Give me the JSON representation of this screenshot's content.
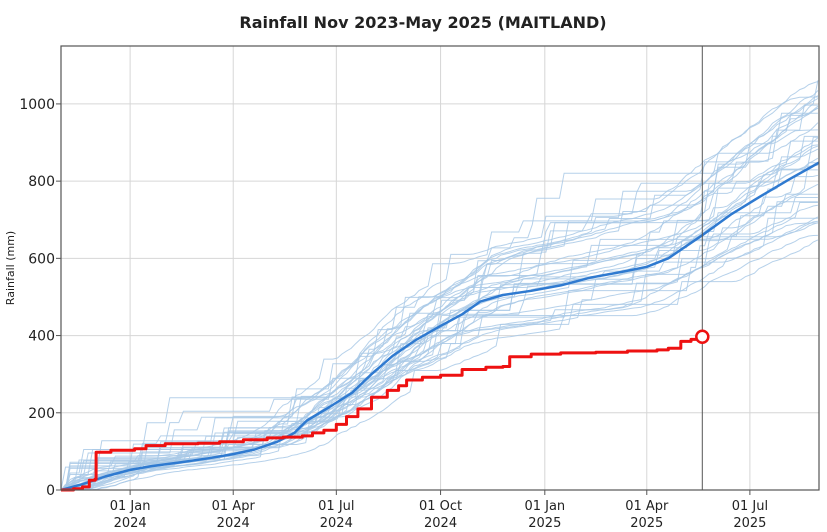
{
  "chart_data": {
    "type": "line",
    "title": "Rainfall Nov 2023-May 2025 (MAITLAND)",
    "ylabel": "Rainfall (mm)",
    "xlabel": "",
    "x_range": [
      "2023-11-01",
      "2025-08-31"
    ],
    "ylim": [
      0,
      1150
    ],
    "y_ticks": [
      0,
      200,
      400,
      600,
      800,
      1000
    ],
    "x_ticks": [
      {
        "date": "2024-01-01",
        "line1": "01 Jan",
        "line2": "2024"
      },
      {
        "date": "2024-04-01",
        "line1": "01 Apr",
        "line2": "2024"
      },
      {
        "date": "2024-07-01",
        "line1": "01 Jul",
        "line2": "2024"
      },
      {
        "date": "2024-10-01",
        "line1": "01 Oct",
        "line2": "2024"
      },
      {
        "date": "2025-01-01",
        "line1": "01 Jan",
        "line2": "2025"
      },
      {
        "date": "2025-04-01",
        "line1": "01 Apr",
        "line2": "2025"
      },
      {
        "date": "2025-07-01",
        "line1": "01 Jul",
        "line2": "2025"
      }
    ],
    "grid": true,
    "current_date": "2025-05-20",
    "colors": {
      "historical": "#a9c9e6",
      "median": "#2f7ad0",
      "current": "#ee1111",
      "grid": "#d6d6d6",
      "axis": "#555555",
      "marker_line": "#555555"
    },
    "series": [
      {
        "role": "median",
        "points": [
          [
            "2023-11-01",
            0
          ],
          [
            "2023-11-20",
            15
          ],
          [
            "2023-12-10",
            35
          ],
          [
            "2024-01-01",
            52
          ],
          [
            "2024-01-20",
            62
          ],
          [
            "2024-02-15",
            72
          ],
          [
            "2024-03-10",
            82
          ],
          [
            "2024-04-01",
            93
          ],
          [
            "2024-04-20",
            105
          ],
          [
            "2024-05-10",
            125
          ],
          [
            "2024-05-25",
            148
          ],
          [
            "2024-06-05",
            180
          ],
          [
            "2024-06-25",
            215
          ],
          [
            "2024-07-15",
            252
          ],
          [
            "2024-08-01",
            300
          ],
          [
            "2024-08-20",
            348
          ],
          [
            "2024-09-10",
            390
          ],
          [
            "2024-10-01",
            425
          ],
          [
            "2024-10-20",
            455
          ],
          [
            "2024-11-05",
            488
          ],
          [
            "2024-11-25",
            505
          ],
          [
            "2024-12-20",
            516
          ],
          [
            "2025-01-15",
            530
          ],
          [
            "2025-02-10",
            550
          ],
          [
            "2025-03-10",
            565
          ],
          [
            "2025-04-01",
            578
          ],
          [
            "2025-04-20",
            600
          ],
          [
            "2025-05-20",
            660
          ],
          [
            "2025-06-15",
            715
          ],
          [
            "2025-07-10",
            760
          ],
          [
            "2025-08-05",
            805
          ],
          [
            "2025-08-31",
            848
          ]
        ]
      },
      {
        "role": "current",
        "points": [
          [
            "2023-11-01",
            0
          ],
          [
            "2023-11-12",
            3
          ],
          [
            "2023-11-20",
            8
          ],
          [
            "2023-11-26",
            25
          ],
          [
            "2023-12-01",
            28
          ],
          [
            "2023-12-02",
            98
          ],
          [
            "2023-12-15",
            103
          ],
          [
            "2024-01-05",
            107
          ],
          [
            "2024-01-15",
            115
          ],
          [
            "2024-02-01",
            120
          ],
          [
            "2024-03-01",
            121
          ],
          [
            "2024-03-20",
            125
          ],
          [
            "2024-04-10",
            130
          ],
          [
            "2024-05-01",
            135
          ],
          [
            "2024-05-15",
            137
          ],
          [
            "2024-06-01",
            140
          ],
          [
            "2024-06-10",
            148
          ],
          [
            "2024-06-20",
            155
          ],
          [
            "2024-07-01",
            170
          ],
          [
            "2024-07-10",
            190
          ],
          [
            "2024-07-20",
            210
          ],
          [
            "2024-08-01",
            240
          ],
          [
            "2024-08-15",
            258
          ],
          [
            "2024-08-25",
            270
          ],
          [
            "2024-09-01",
            285
          ],
          [
            "2024-09-15",
            292
          ],
          [
            "2024-10-01",
            297
          ],
          [
            "2024-10-20",
            312
          ],
          [
            "2024-11-10",
            318
          ],
          [
            "2024-11-25",
            320
          ],
          [
            "2024-12-01",
            345
          ],
          [
            "2024-12-20",
            352
          ],
          [
            "2025-01-15",
            355
          ],
          [
            "2025-02-15",
            357
          ],
          [
            "2025-03-15",
            360
          ],
          [
            "2025-04-10",
            363
          ],
          [
            "2025-04-20",
            367
          ],
          [
            "2025-05-01",
            385
          ],
          [
            "2025-05-10",
            390
          ],
          [
            "2025-05-20",
            397
          ]
        ]
      }
    ]
  }
}
